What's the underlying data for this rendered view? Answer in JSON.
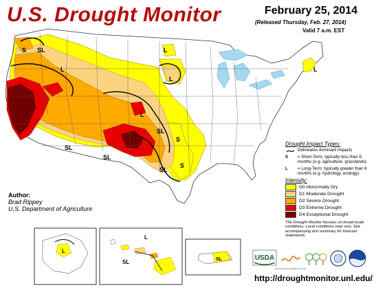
{
  "header": {
    "title": "U.S. Drought Monitor",
    "date": "February 25, 2014",
    "released": "(Released Thursday, Feb. 27, 2014)",
    "valid": "Valid 7 a.m. EST"
  },
  "author": {
    "heading": "Author:",
    "name": "Brad Rippey",
    "org": "U.S. Department of Agriculture"
  },
  "legend": {
    "impact_title": "Drought Impact Types:",
    "delineates": "Delineates dominant impacts",
    "s_symbol": "S",
    "s_text": "= Short-Term, typically less than 6 months (e.g. agriculture, grasslands)",
    "l_symbol": "L",
    "l_text": "= Long-Term, typically greater than 6 months (e.g. hydrology, ecology)",
    "intensity_title": "Intensity:",
    "categories": [
      {
        "label": "D0 Abnormally Dry",
        "color": "#ffff00"
      },
      {
        "label": "D1 Moderate Drought",
        "color": "#fcd37f"
      },
      {
        "label": "D2 Severe Drought",
        "color": "#ffaa00"
      },
      {
        "label": "D3 Extreme Drought",
        "color": "#e60000"
      },
      {
        "label": "D4 Exceptional Drought",
        "color": "#730000"
      }
    ],
    "note": "The Drought Monitor focuses on broad-scale conditions. Local conditions may vary. See accompanying text summary for forecast statements."
  },
  "map_labels": {
    "s": "S",
    "sl": "SL",
    "l": "L"
  },
  "logos": {
    "usda": "USDA",
    "ndmc": "National Drought Mitigation Center"
  },
  "url": "http://droughtmonitor.unl.edu/",
  "colors": {
    "title": "#b40c0c",
    "water": "#a6d8f0",
    "d0": "#ffff00",
    "d1": "#fcd37f",
    "d2": "#ffaa00",
    "d3": "#e60000",
    "d4": "#730000"
  }
}
